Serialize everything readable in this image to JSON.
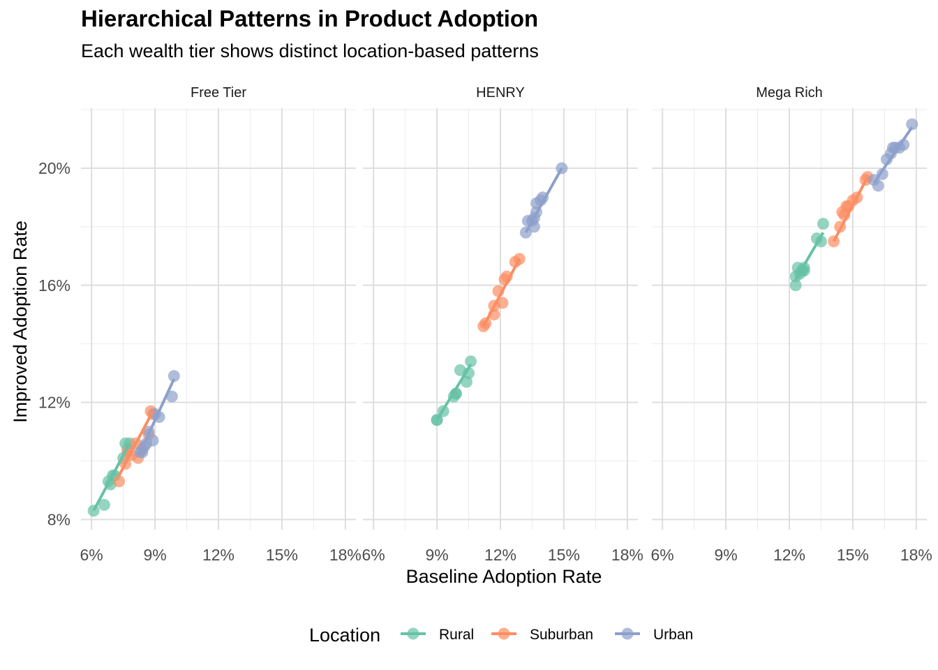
{
  "chart_data": {
    "type": "scatter",
    "title": "Hierarchical Patterns in Product Adoption",
    "subtitle": "Each wealth tier shows distinct location-based patterns",
    "xlabel": "Baseline Adoption Rate",
    "ylabel": "Improved Adoption Rate",
    "xlim": [
      0.055,
      0.185
    ],
    "ylim": [
      0.0765,
      0.2205
    ],
    "x_ticks": [
      0.06,
      0.09,
      0.12,
      0.15,
      0.18
    ],
    "x_tick_labels": [
      "6%",
      "9%",
      "12%",
      "15%",
      "18%"
    ],
    "y_ticks": [
      0.08,
      0.12,
      0.16,
      0.2
    ],
    "y_tick_labels": [
      "8%",
      "12%",
      "16%",
      "20%"
    ],
    "grid": true,
    "legend": {
      "title": "Location",
      "position": "bottom",
      "entries": [
        "Rural",
        "Suburban",
        "Urban"
      ]
    },
    "colors": {
      "Rural": "#66c2a5",
      "Suburban": "#fc8d62",
      "Urban": "#8da0cb"
    },
    "panels": [
      {
        "name": "Free Tier",
        "series": [
          {
            "name": "Rural",
            "points": [
              [
                0.061,
                0.083
              ],
              [
                0.066,
                0.085
              ],
              [
                0.068,
                0.093
              ],
              [
                0.069,
                0.092
              ],
              [
                0.07,
                0.095
              ],
              [
                0.071,
                0.095
              ],
              [
                0.075,
                0.101
              ],
              [
                0.076,
                0.106
              ],
              [
                0.077,
                0.104
              ],
              [
                0.078,
                0.106
              ]
            ],
            "fit": [
              [
                0.061,
                0.083
              ],
              [
                0.078,
                0.106
              ]
            ]
          },
          {
            "name": "Suburban",
            "points": [
              [
                0.073,
                0.093
              ],
              [
                0.076,
                0.099
              ],
              [
                0.077,
                0.103
              ],
              [
                0.079,
                0.102
              ],
              [
                0.081,
                0.106
              ],
              [
                0.082,
                0.101
              ],
              [
                0.084,
                0.104
              ],
              [
                0.087,
                0.109
              ],
              [
                0.088,
                0.117
              ],
              [
                0.089,
                0.116
              ]
            ],
            "fit": [
              [
                0.073,
                0.095
              ],
              [
                0.089,
                0.117
              ]
            ]
          },
          {
            "name": "Urban",
            "points": [
              [
                0.083,
                0.103
              ],
              [
                0.084,
                0.103
              ],
              [
                0.085,
                0.105
              ],
              [
                0.086,
                0.106
              ],
              [
                0.087,
                0.11
              ],
              [
                0.089,
                0.107
              ],
              [
                0.09,
                0.116
              ],
              [
                0.092,
                0.115
              ],
              [
                0.098,
                0.122
              ],
              [
                0.099,
                0.129
              ]
            ],
            "fit": [
              [
                0.083,
                0.103
              ],
              [
                0.099,
                0.128
              ]
            ]
          }
        ]
      },
      {
        "name": "HENRY",
        "series": [
          {
            "name": "Rural",
            "points": [
              [
                0.09,
                0.114
              ],
              [
                0.09,
                0.114
              ],
              [
                0.093,
                0.117
              ],
              [
                0.098,
                0.122
              ],
              [
                0.099,
                0.123
              ],
              [
                0.099,
                0.123
              ],
              [
                0.101,
                0.131
              ],
              [
                0.104,
                0.127
              ],
              [
                0.105,
                0.13
              ],
              [
                0.106,
                0.134
              ]
            ],
            "fit": [
              [
                0.09,
                0.114
              ],
              [
                0.106,
                0.133
              ]
            ]
          },
          {
            "name": "Suburban",
            "points": [
              [
                0.112,
                0.146
              ],
              [
                0.113,
                0.147
              ],
              [
                0.117,
                0.15
              ],
              [
                0.117,
                0.153
              ],
              [
                0.119,
                0.158
              ],
              [
                0.121,
                0.154
              ],
              [
                0.122,
                0.162
              ],
              [
                0.123,
                0.163
              ],
              [
                0.127,
                0.168
              ],
              [
                0.129,
                0.169
              ]
            ],
            "fit": [
              [
                0.112,
                0.146
              ],
              [
                0.129,
                0.169
              ]
            ]
          },
          {
            "name": "Urban",
            "points": [
              [
                0.132,
                0.178
              ],
              [
                0.133,
                0.182
              ],
              [
                0.135,
                0.182
              ],
              [
                0.136,
                0.18
              ],
              [
                0.136,
                0.183
              ],
              [
                0.137,
                0.185
              ],
              [
                0.137,
                0.188
              ],
              [
                0.139,
                0.189
              ],
              [
                0.14,
                0.19
              ],
              [
                0.149,
                0.2
              ]
            ],
            "fit": [
              [
                0.132,
                0.178
              ],
              [
                0.149,
                0.2
              ]
            ]
          }
        ]
      },
      {
        "name": "Mega Rich",
        "series": [
          {
            "name": "Rural",
            "points": [
              [
                0.123,
                0.16
              ],
              [
                0.123,
                0.163
              ],
              [
                0.124,
                0.166
              ],
              [
                0.125,
                0.164
              ],
              [
                0.126,
                0.165
              ],
              [
                0.127,
                0.165
              ],
              [
                0.127,
                0.166
              ],
              [
                0.133,
                0.176
              ],
              [
                0.135,
                0.175
              ],
              [
                0.136,
                0.181
              ]
            ],
            "fit": [
              [
                0.123,
                0.162
              ],
              [
                0.136,
                0.178
              ]
            ]
          },
          {
            "name": "Suburban",
            "points": [
              [
                0.141,
                0.175
              ],
              [
                0.144,
                0.18
              ],
              [
                0.145,
                0.185
              ],
              [
                0.146,
                0.184
              ],
              [
                0.147,
                0.187
              ],
              [
                0.148,
                0.187
              ],
              [
                0.15,
                0.189
              ],
              [
                0.152,
                0.19
              ],
              [
                0.156,
                0.196
              ],
              [
                0.157,
                0.197
              ]
            ],
            "fit": [
              [
                0.141,
                0.175
              ],
              [
                0.157,
                0.197
              ]
            ]
          },
          {
            "name": "Urban",
            "points": [
              [
                0.16,
                0.196
              ],
              [
                0.162,
                0.194
              ],
              [
                0.164,
                0.198
              ],
              [
                0.166,
                0.203
              ],
              [
                0.168,
                0.205
              ],
              [
                0.169,
                0.207
              ],
              [
                0.17,
                0.207
              ],
              [
                0.172,
                0.207
              ],
              [
                0.174,
                0.208
              ],
              [
                0.178,
                0.215
              ]
            ],
            "fit": [
              [
                0.16,
                0.195
              ],
              [
                0.178,
                0.214
              ]
            ]
          }
        ]
      }
    ]
  }
}
